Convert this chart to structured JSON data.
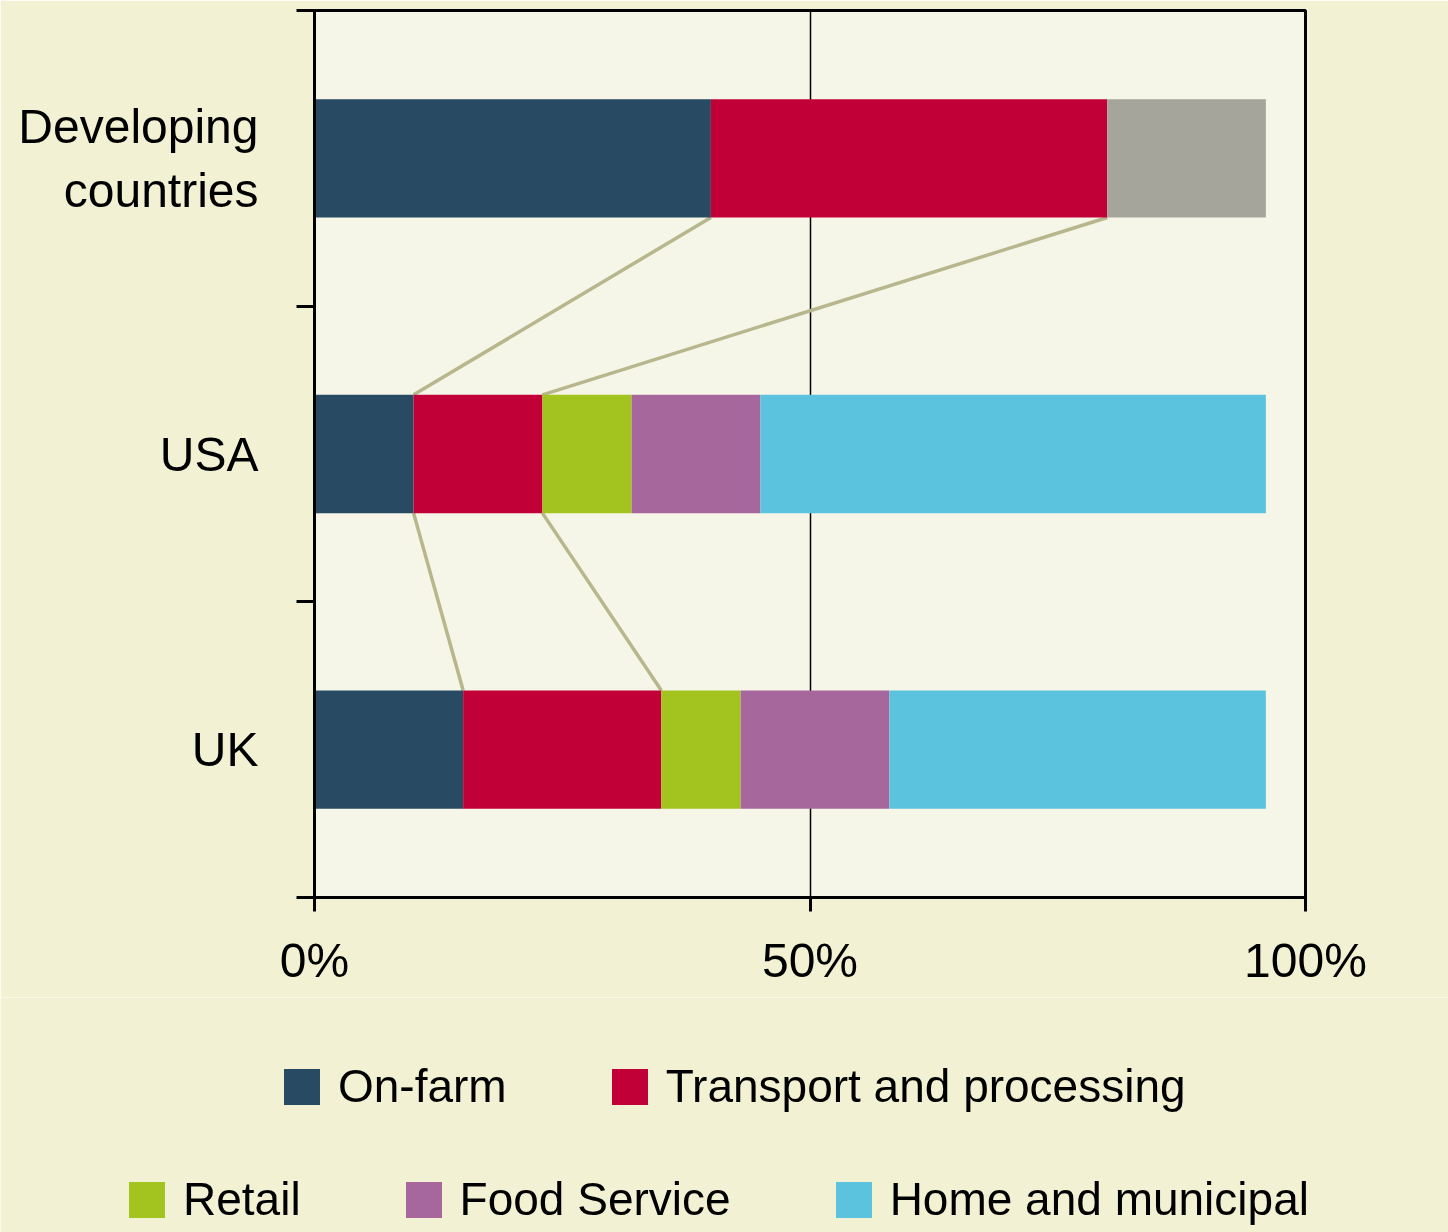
{
  "chart_data": {
    "type": "bar",
    "orientation": "horizontal",
    "stacked": true,
    "categories": [
      "Developing countries",
      "USA",
      "UK"
    ],
    "series": [
      {
        "name": "On-farm",
        "color": "#284a63",
        "values": [
          40,
          10,
          15
        ]
      },
      {
        "name": "Transport and processing",
        "color": "#c20038",
        "values": [
          40,
          13,
          20
        ]
      },
      {
        "color": "#a5a59c",
        "values": [
          16,
          null,
          null
        ]
      },
      {
        "name": "Retail",
        "color": "#a3c31e",
        "values": [
          null,
          9,
          8
        ]
      },
      {
        "name": "Food Service",
        "color": "#a6689c",
        "values": [
          null,
          13,
          15
        ]
      },
      {
        "name": "Home and municipal",
        "color": "#5bc3dd",
        "values": [
          null,
          51,
          38
        ]
      }
    ],
    "xlim": [
      0,
      100
    ],
    "xticks": [
      {
        "value": 0,
        "label": "0%"
      },
      {
        "value": 50,
        "label": "50%"
      },
      {
        "value": 100,
        "label": "100%"
      }
    ],
    "grid": "x",
    "legend": "bottom"
  }
}
